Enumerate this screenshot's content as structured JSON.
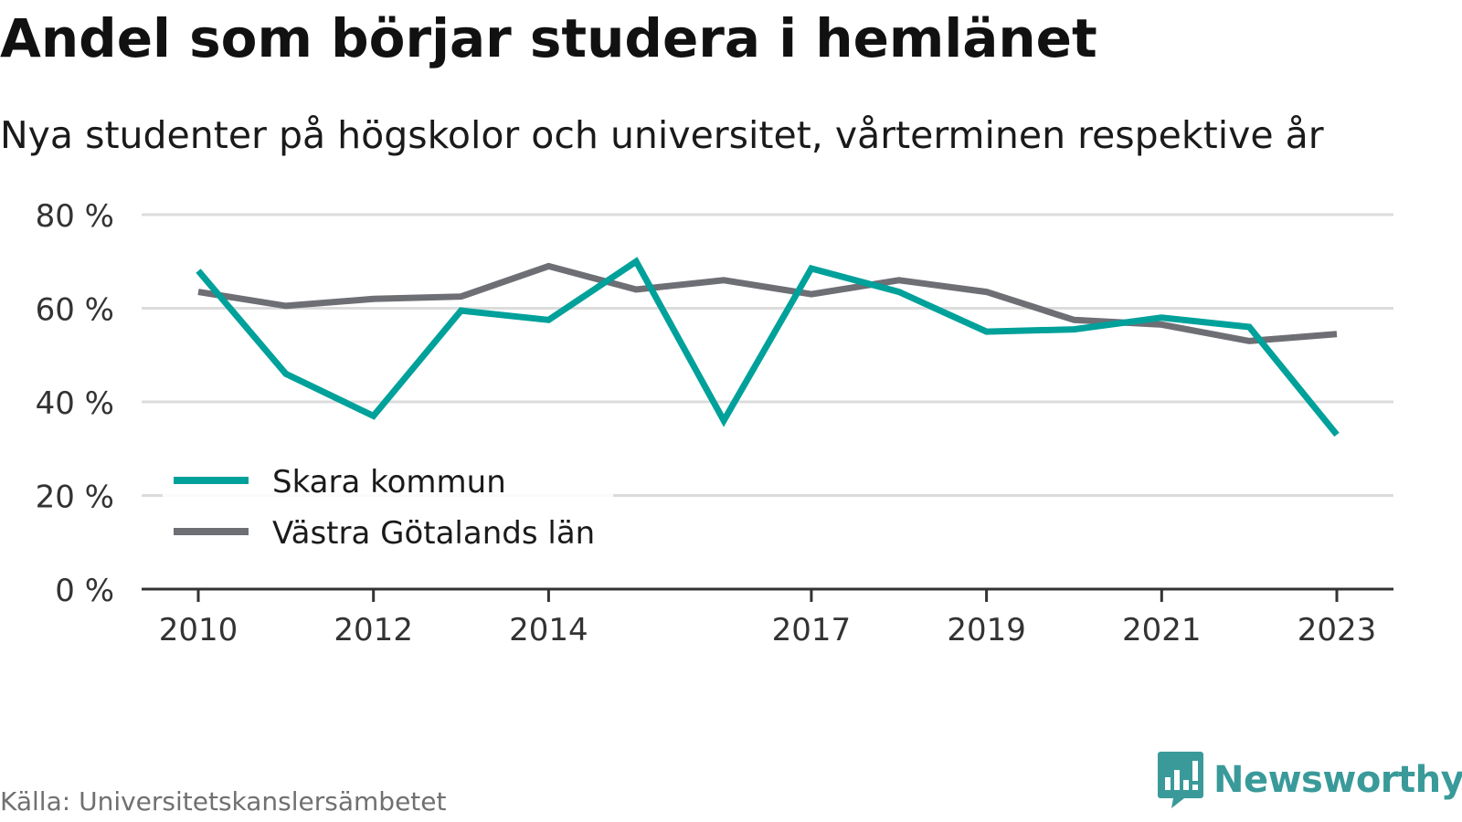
{
  "title": "Andel som börjar studera i hemlänet",
  "subtitle": "Nya studenter på högskolor och universitet, vårterminen respektive år",
  "source": "Källa: Universitetskanslersämbetet",
  "brand": {
    "name": "Newsworthy",
    "icon": "newsworthy-logo-icon",
    "color": "#3a9a9a"
  },
  "chart_data": {
    "type": "line",
    "x": [
      2010,
      2011,
      2012,
      2013,
      2014,
      2015,
      2016,
      2017,
      2018,
      2019,
      2020,
      2021,
      2022,
      2023
    ],
    "x_tick_values": [
      2010,
      2012,
      2014,
      2017,
      2019,
      2021,
      2023
    ],
    "x_tick_labels": [
      "2010",
      "2012",
      "2014",
      "2017",
      "2019",
      "2021",
      "2023"
    ],
    "ylim": [
      0,
      80
    ],
    "y_ticks": [
      0,
      20,
      40,
      60,
      80
    ],
    "y_tick_labels": [
      "0 %",
      "20 %",
      "40 %",
      "60 %",
      "80 %"
    ],
    "grid": true,
    "legend_position": "bottom-left",
    "series": [
      {
        "name": "Skara kommun",
        "color": "#00a19a",
        "values": [
          68,
          46,
          37,
          59.5,
          57.5,
          70,
          36,
          68.5,
          63.5,
          55,
          55.5,
          58,
          56,
          33
        ]
      },
      {
        "name": "Västra Götalands län",
        "color": "#6e6e75",
        "values": [
          63.5,
          60.5,
          62,
          62.5,
          69,
          64,
          66,
          63,
          66,
          63.5,
          57.5,
          56.5,
          53,
          54.5
        ]
      }
    ]
  }
}
